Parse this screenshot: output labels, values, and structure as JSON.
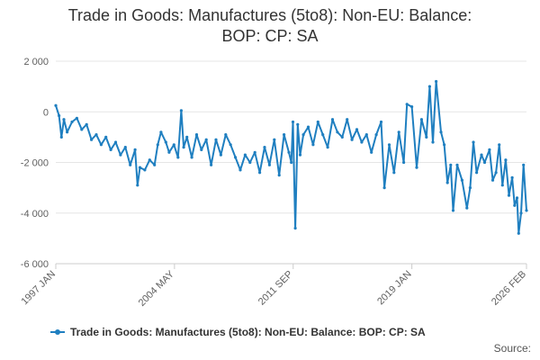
{
  "chart_data": {
    "type": "line",
    "title_line1": "Trade in Goods: Manufactures (5to8): Non-EU: Balance:",
    "title_line2": "BOP: CP: SA",
    "xlabel": "",
    "ylabel": "",
    "ylim": [
      -6000,
      2000
    ],
    "y_ticks": [
      2000,
      0,
      -2000,
      -4000,
      -6000
    ],
    "y_tick_labels": [
      "2 000",
      "0",
      "-2 000",
      "-4 000",
      "-6 000"
    ],
    "x_tick_labels": [
      "1997 JAN",
      "2004 MAY",
      "2011 SEP",
      "2019 JAN",
      "2026 FEB"
    ],
    "x_range": [
      1997.0,
      2026.083
    ],
    "x_tick_positions": [
      1997.0,
      2004.333,
      2011.667,
      2019.0,
      2026.083
    ],
    "grid": true,
    "legend_position": "bottom",
    "series": [
      {
        "name": "Trade in Goods: Manufactures (5to8): Non-EU: Balance: BOP: CP: SA",
        "color": "#1f7fc0",
        "points": [
          [
            1997.0,
            250
          ],
          [
            1997.2,
            -150
          ],
          [
            1997.35,
            -1000
          ],
          [
            1997.5,
            -300
          ],
          [
            1997.7,
            -800
          ],
          [
            1998.0,
            -400
          ],
          [
            1998.3,
            -250
          ],
          [
            1998.6,
            -700
          ],
          [
            1998.9,
            -500
          ],
          [
            1999.2,
            -1100
          ],
          [
            1999.5,
            -900
          ],
          [
            1999.8,
            -1300
          ],
          [
            2000.1,
            -1000
          ],
          [
            2000.4,
            -1500
          ],
          [
            2000.7,
            -1200
          ],
          [
            2001.0,
            -1700
          ],
          [
            2001.3,
            -1400
          ],
          [
            2001.6,
            -2100
          ],
          [
            2001.9,
            -1500
          ],
          [
            2002.05,
            -2900
          ],
          [
            2002.2,
            -2200
          ],
          [
            2002.5,
            -2300
          ],
          [
            2002.8,
            -1900
          ],
          [
            2003.1,
            -2100
          ],
          [
            2003.3,
            -1300
          ],
          [
            2003.5,
            -800
          ],
          [
            2003.8,
            -1200
          ],
          [
            2004.0,
            -1600
          ],
          [
            2004.3,
            -1300
          ],
          [
            2004.55,
            -1800
          ],
          [
            2004.75,
            50
          ],
          [
            2004.9,
            -1400
          ],
          [
            2005.1,
            -1000
          ],
          [
            2005.4,
            -1800
          ],
          [
            2005.7,
            -900
          ],
          [
            2006.0,
            -1500
          ],
          [
            2006.3,
            -1100
          ],
          [
            2006.6,
            -2100
          ],
          [
            2006.9,
            -1100
          ],
          [
            2007.2,
            -1700
          ],
          [
            2007.5,
            -900
          ],
          [
            2007.8,
            -1300
          ],
          [
            2008.1,
            -1800
          ],
          [
            2008.4,
            -2300
          ],
          [
            2008.7,
            -1700
          ],
          [
            2009.0,
            -2000
          ],
          [
            2009.3,
            -1600
          ],
          [
            2009.6,
            -2400
          ],
          [
            2009.9,
            -1400
          ],
          [
            2010.2,
            -2100
          ],
          [
            2010.5,
            -1100
          ],
          [
            2010.8,
            -2500
          ],
          [
            2011.1,
            -900
          ],
          [
            2011.4,
            -1600
          ],
          [
            2011.55,
            -2000
          ],
          [
            2011.65,
            -400
          ],
          [
            2011.8,
            -4600
          ],
          [
            2011.95,
            -500
          ],
          [
            2012.1,
            -1700
          ],
          [
            2012.3,
            -900
          ],
          [
            2012.6,
            -600
          ],
          [
            2012.9,
            -1300
          ],
          [
            2013.2,
            -400
          ],
          [
            2013.5,
            -900
          ],
          [
            2013.8,
            -1400
          ],
          [
            2014.1,
            -300
          ],
          [
            2014.4,
            -800
          ],
          [
            2014.7,
            -1000
          ],
          [
            2015.0,
            -300
          ],
          [
            2015.3,
            -1100
          ],
          [
            2015.6,
            -700
          ],
          [
            2015.9,
            -1200
          ],
          [
            2016.2,
            -900
          ],
          [
            2016.5,
            -1600
          ],
          [
            2016.8,
            -900
          ],
          [
            2017.1,
            -400
          ],
          [
            2017.3,
            -3000
          ],
          [
            2017.6,
            -1300
          ],
          [
            2017.9,
            -2400
          ],
          [
            2018.2,
            -800
          ],
          [
            2018.5,
            -2000
          ],
          [
            2018.7,
            300
          ],
          [
            2019.0,
            200
          ],
          [
            2019.3,
            -2200
          ],
          [
            2019.6,
            -300
          ],
          [
            2019.9,
            -1000
          ],
          [
            2020.1,
            1000
          ],
          [
            2020.3,
            -1200
          ],
          [
            2020.5,
            1200
          ],
          [
            2020.8,
            -800
          ],
          [
            2021.0,
            -1300
          ],
          [
            2021.2,
            -2800
          ],
          [
            2021.4,
            -2100
          ],
          [
            2021.55,
            -3900
          ],
          [
            2021.8,
            -2100
          ],
          [
            2022.1,
            -2700
          ],
          [
            2022.4,
            -3800
          ],
          [
            2022.6,
            -3000
          ],
          [
            2022.8,
            -1200
          ],
          [
            2023.0,
            -2400
          ],
          [
            2023.3,
            -1700
          ],
          [
            2023.5,
            -2000
          ],
          [
            2023.8,
            -1500
          ],
          [
            2024.0,
            -2700
          ],
          [
            2024.2,
            -2400
          ],
          [
            2024.4,
            -1300
          ],
          [
            2024.6,
            -2900
          ],
          [
            2024.8,
            -1900
          ],
          [
            2025.0,
            -3300
          ],
          [
            2025.2,
            -2600
          ],
          [
            2025.35,
            -3700
          ],
          [
            2025.5,
            -3400
          ],
          [
            2025.6,
            -4800
          ],
          [
            2025.75,
            -4000
          ],
          [
            2025.9,
            -2100
          ],
          [
            2026.083,
            -3900
          ]
        ]
      }
    ]
  },
  "legend": {
    "label": "Trade in Goods: Manufactures (5to8): Non-EU: Balance: BOP: CP: SA"
  },
  "footer": {
    "source": "Source:"
  }
}
